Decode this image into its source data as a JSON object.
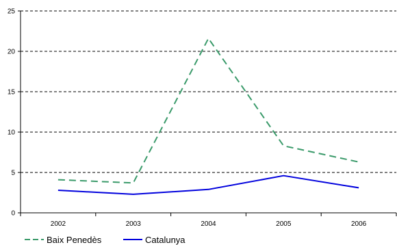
{
  "chart_data": {
    "type": "line",
    "x": [
      "2002",
      "2003",
      "2004",
      "2005",
      "2006"
    ],
    "ylim": [
      0,
      25
    ],
    "yticks": [
      0,
      5,
      10,
      15,
      20,
      25
    ],
    "grid": "horizontal-dashed",
    "legend_position": "bottom-left",
    "series": [
      {
        "name": "Baix Penedès",
        "values": [
          4.1,
          3.7,
          21.6,
          8.3,
          6.3
        ],
        "color": "#3a9a6a",
        "line_style": "dashed"
      },
      {
        "name": "Catalunya",
        "values": [
          2.8,
          2.3,
          2.9,
          4.6,
          3.1
        ],
        "color": "#0000dd",
        "line_style": "solid"
      }
    ]
  }
}
